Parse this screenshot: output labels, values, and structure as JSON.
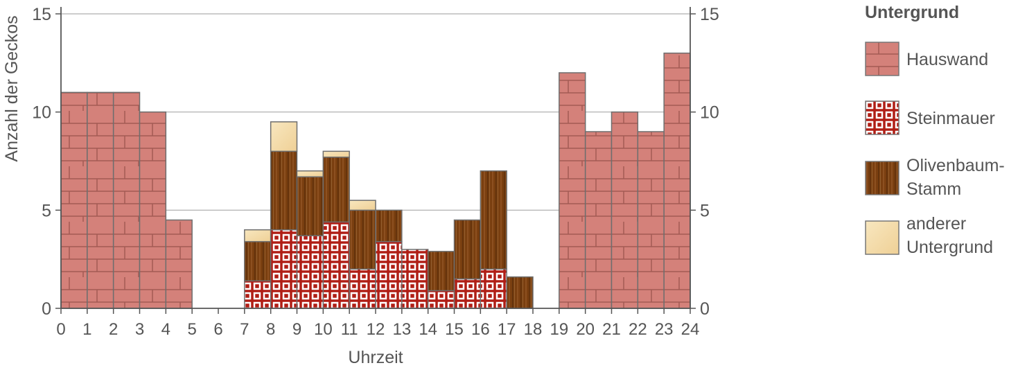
{
  "chart_data": {
    "type": "bar",
    "stacked": true,
    "title": "",
    "xlabel": "Uhrzeit",
    "ylabel": "Anzahl der Geckos",
    "xlim": [
      0,
      24
    ],
    "ylim": [
      0,
      15
    ],
    "x_ticks": [
      "0",
      "1",
      "2",
      "3",
      "4",
      "5",
      "6",
      "7",
      "8",
      "9",
      "10",
      "11",
      "12",
      "13",
      "14",
      "15",
      "16",
      "17",
      "18",
      "19",
      "20",
      "21",
      "22",
      "23",
      "24"
    ],
    "y_ticks": [
      0,
      5,
      10,
      15
    ],
    "y_ticks_right": [
      0,
      5,
      10,
      15
    ],
    "grid": "horizontal",
    "legend_position": "right",
    "legend_title": "Untergrund",
    "hours": [
      0,
      1,
      2,
      3,
      4,
      5,
      6,
      7,
      8,
      9,
      10,
      11,
      12,
      13,
      14,
      15,
      16,
      17,
      18,
      19,
      20,
      21,
      22,
      23
    ],
    "series": [
      {
        "name": "Hauswand",
        "color": "#d4817a",
        "pattern": "brick",
        "values": [
          11,
          11,
          11,
          10,
          4.5,
          0,
          0,
          0,
          0,
          0,
          0,
          0,
          0,
          0,
          0,
          0,
          0,
          0,
          0,
          12,
          9,
          10,
          9,
          13
        ]
      },
      {
        "name": "Steinmauer",
        "color": "#b01e15",
        "pattern": "grid",
        "values": [
          0,
          0,
          0,
          0,
          0,
          0,
          0,
          1.4,
          4,
          3.7,
          4.4,
          2,
          3.4,
          3,
          0.9,
          1.5,
          2,
          0,
          0,
          0,
          0,
          0,
          0,
          0
        ]
      },
      {
        "name": "Olivenbaum-Stamm",
        "color": "#7a3f10",
        "pattern": "wood",
        "values": [
          0,
          0,
          0,
          0,
          0,
          0,
          0,
          2,
          4,
          3,
          3.3,
          3,
          1.6,
          0,
          2,
          3,
          5,
          1.6,
          0,
          0,
          0,
          0,
          0,
          0
        ]
      },
      {
        "name": "anderer Untergrund",
        "color": "#f5dfae",
        "pattern": "gradient",
        "values": [
          0,
          0,
          0,
          0,
          0,
          0,
          0,
          0.6,
          1.5,
          0.3,
          0.3,
          0.5,
          0,
          0,
          0,
          0,
          0,
          0,
          0,
          0,
          0,
          0,
          0,
          0
        ]
      }
    ]
  },
  "legend": {
    "title": "Untergrund",
    "items": [
      {
        "label": "Hauswand",
        "pattern": "brick"
      },
      {
        "label": "Steinmauer",
        "pattern": "grid"
      },
      {
        "label": "Olivenbaum-Stamm",
        "line1": "Olivenbaum-",
        "line2": "Stamm",
        "pattern": "wood"
      },
      {
        "label": "anderer Untergrund",
        "line1": "anderer",
        "line2": "Untergrund",
        "pattern": "gradient"
      }
    ]
  }
}
